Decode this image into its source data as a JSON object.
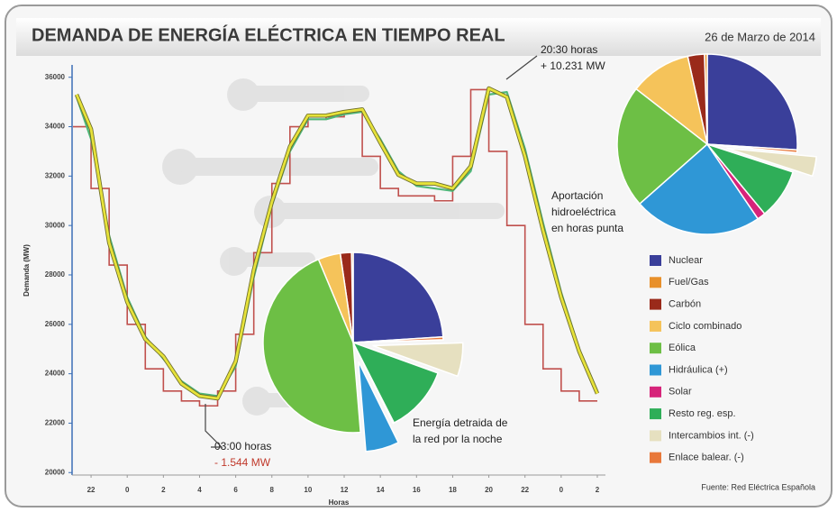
{
  "title": "DEMANDA DE ENERGÍA ELÉCTRICA EN TIEMPO REAL",
  "date": "26 de Marzo de 2014",
  "source": "Fuente: Red Eléctrica Española",
  "chart_data": [
    {
      "type": "line",
      "ylabel": "Demanda (MW)",
      "xlabel": "Horas",
      "xlim": [
        -1.05,
        28.45
      ],
      "ylim": [
        19900,
        36500
      ],
      "xticks": [
        {
          "value": 0,
          "label": "22"
        },
        {
          "value": 2,
          "label": "0"
        },
        {
          "value": 4,
          "label": "2"
        },
        {
          "value": 6,
          "label": "4"
        },
        {
          "value": 8,
          "label": "6"
        },
        {
          "value": 10,
          "label": "8"
        },
        {
          "value": 12,
          "label": "10"
        },
        {
          "value": 14,
          "label": "12"
        },
        {
          "value": 16,
          "label": "14"
        },
        {
          "value": 18,
          "label": "16"
        },
        {
          "value": 20,
          "label": "18"
        },
        {
          "value": 22,
          "label": "20"
        },
        {
          "value": 24,
          "label": "22"
        },
        {
          "value": 26,
          "label": "0"
        },
        {
          "value": 28,
          "label": "2"
        }
      ],
      "yticks": [
        20000,
        22000,
        24000,
        26000,
        28000,
        30000,
        32000,
        34000,
        36000
      ],
      "series": [
        {
          "style": "step",
          "color": "#c0504d",
          "x": [
            -1,
            0,
            1,
            2,
            3,
            4,
            5,
            6,
            7,
            8,
            9,
            10,
            11,
            12,
            13,
            14,
            15,
            16,
            17,
            18,
            19,
            20,
            21,
            22,
            23,
            24,
            25,
            26,
            27
          ],
          "values": [
            34000,
            31500,
            28400,
            26000,
            24200,
            23300,
            22900,
            22700,
            23300,
            25600,
            28900,
            31700,
            34000,
            34300,
            34400,
            34600,
            32800,
            31500,
            31200,
            31200,
            31000,
            32800,
            35500,
            33000,
            30000,
            26000,
            24200,
            23300,
            22900
          ]
        },
        {
          "style": "line",
          "color": "#4fb87a",
          "x": [
            -0.8,
            0,
            1,
            2,
            3,
            4,
            5,
            6,
            7,
            8,
            9,
            10,
            11,
            12,
            13,
            14,
            15,
            16,
            17,
            18,
            19,
            20,
            21,
            22,
            23,
            24,
            25,
            26,
            27,
            28
          ],
          "values": [
            35200,
            33500,
            29600,
            27100,
            25500,
            24600,
            23700,
            23200,
            23100,
            24300,
            27900,
            30800,
            33000,
            34300,
            34300,
            34500,
            34600,
            33500,
            32200,
            31600,
            31500,
            31400,
            32200,
            35300,
            35400,
            33100,
            30100,
            27300,
            25000,
            23300
          ]
        },
        {
          "style": "line",
          "color": "#e6e23a",
          "x": [
            -0.8,
            0,
            1,
            2,
            3,
            4,
            5,
            6,
            7,
            8,
            9,
            10,
            11,
            12,
            13,
            14,
            15,
            16,
            17,
            18,
            19,
            20,
            21,
            22,
            23,
            24,
            25,
            26,
            27,
            28
          ],
          "values": [
            35300,
            33900,
            29300,
            26900,
            25400,
            24700,
            23600,
            23100,
            23000,
            24500,
            28200,
            30950,
            33200,
            34450,
            34450,
            34600,
            34700,
            33350,
            32050,
            31700,
            31700,
            31500,
            32400,
            35550,
            35200,
            32800,
            29800,
            27100,
            24900,
            23200
          ]
        }
      ],
      "annotations": [
        {
          "lines": [
            "20:30 horas",
            "+ 10.231 MW"
          ],
          "colors": [
            "#222222",
            "#222222"
          ]
        },
        {
          "lines": [
            "03:00 horas",
            "- 1.544 MW"
          ],
          "colors": [
            "#222222",
            "#c0392b"
          ]
        },
        {
          "lines": [
            "Aportación",
            "hidroeléctrica",
            "en horas punta"
          ],
          "colors": [
            "#222222",
            "#222222",
            "#222222"
          ]
        },
        {
          "lines": [
            "Energía detraida de",
            "la red por la noche"
          ],
          "colors": [
            "#222222",
            "#222222"
          ]
        }
      ]
    },
    {
      "type": "pie",
      "categories": [
        "Nuclear",
        "Fuel/Gas",
        "Carbón",
        "Ciclo combinado",
        "Eólica",
        "Hidráulica (+)",
        "Solar",
        "Resto reg. esp.",
        "Intercambios int. (-)",
        "Enlace balear. (-)"
      ],
      "colors": [
        "#3a3f9a",
        "#e8902a",
        "#9a2a1a",
        "#f5c35a",
        "#6dbf45",
        "#2f97d6",
        "#d6247a",
        "#2fae58",
        "#e6e0c0",
        "#e8783a"
      ],
      "values": [
        26,
        0.5,
        3,
        11,
        22,
        23,
        1.5,
        9,
        3.5,
        0.5
      ],
      "exploded": [
        false,
        false,
        false,
        false,
        false,
        false,
        false,
        false,
        true,
        false
      ]
    },
    {
      "type": "pie",
      "values": [
        24,
        0.3,
        2,
        4,
        45,
        6,
        0.2,
        12,
        6,
        0.5
      ],
      "exploded": [
        false,
        false,
        false,
        false,
        false,
        true,
        false,
        false,
        true,
        false
      ]
    }
  ]
}
